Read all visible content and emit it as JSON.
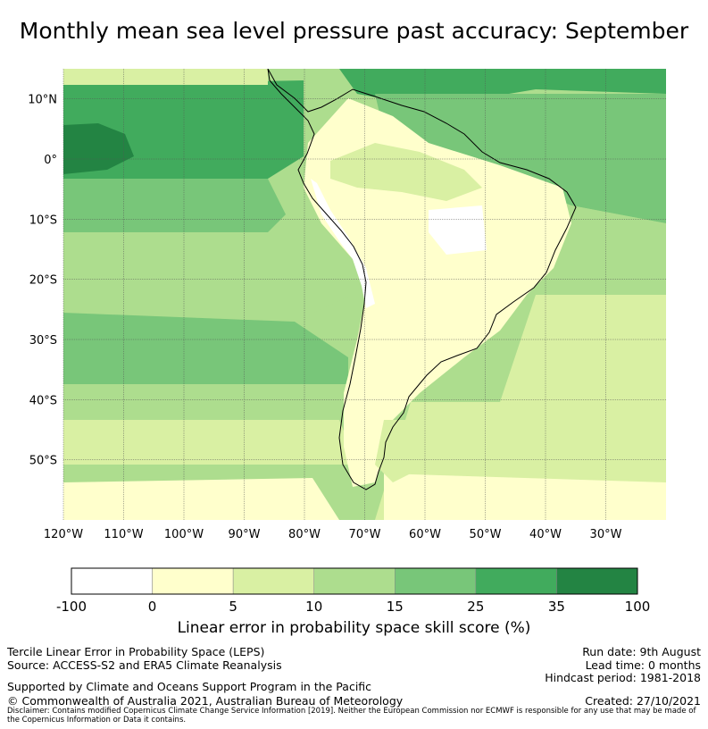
{
  "title": "Monthly mean sea level pressure past accuracy: September",
  "map": {
    "lon_labels": [
      "120°W",
      "110°W",
      "100°W",
      "90°W",
      "80°W",
      "70°W",
      "60°W",
      "50°W",
      "40°W",
      "30°W"
    ],
    "lon_values": [
      -120,
      -110,
      -100,
      -90,
      -80,
      -70,
      -60,
      -50,
      -40,
      -30
    ],
    "lat_labels": [
      "10°N",
      "0°",
      "10°S",
      "20°S",
      "30°S",
      "40°S",
      "50°S"
    ],
    "lat_values": [
      10,
      0,
      -10,
      -20,
      -30,
      -40,
      -50
    ],
    "lon_range": [
      -120,
      -20
    ],
    "lat_range": [
      -60,
      15
    ],
    "grid": true
  },
  "colorbar": {
    "ticks": [
      "-100",
      "0",
      "5",
      "10",
      "15",
      "25",
      "35",
      "100"
    ],
    "colors": [
      "#ffffff",
      "#ffffcc",
      "#d9f0a3",
      "#addd8e",
      "#78c679",
      "#41ab5d",
      "#238443"
    ],
    "label": "Linear error in probability space skill score (%)"
  },
  "footer": {
    "method": "Tercile Linear Error in Probability Space (LEPS)",
    "source": "Source: ACCESS-S2 and ERA5 Climate Reanalysis",
    "support": "Supported by Climate and Oceans Support Program in the Pacific",
    "copyright": "© Commonwealth of Australia 2021, Australian Bureau of Meteorology",
    "run_date": "Run date: 9th August",
    "lead_time": "Lead time: 0 months",
    "hindcast": "Hindcast period: 1981-2018",
    "created": "Created: 27/10/2021",
    "disclaimer": "Disclaimer: Contains modified Copernicus Climate Change Service Information [2019]. Neither the European Commission nor ECMWF is responsible for any use that may be made of the Copernicus Information or Data it contains."
  }
}
